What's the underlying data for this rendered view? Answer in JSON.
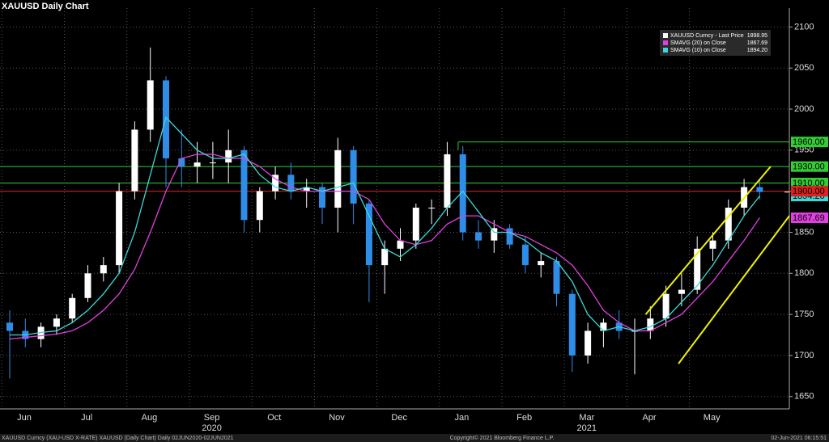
{
  "chart_data": {
    "type": "candlestick",
    "title": "XAUUSD Daily Chart",
    "categories": [
      "Jun",
      null,
      null,
      null,
      "Jul",
      null,
      null,
      null,
      "Aug",
      null,
      null,
      null,
      "Sep",
      null,
      null,
      null,
      "Oct",
      null,
      null,
      null,
      "Nov",
      null,
      null,
      null,
      "Dec",
      null,
      null,
      null,
      "Jan",
      null,
      null,
      null,
      "Feb",
      null,
      null,
      null,
      "Mar",
      null,
      null,
      null,
      "Apr",
      null,
      null,
      null,
      "May",
      null,
      null,
      null,
      null
    ],
    "x_group_labels": [
      {
        "text": "2020",
        "category": "Sep"
      },
      {
        "text": "2021",
        "category": "Mar"
      }
    ],
    "open": [
      1740,
      1730,
      1720,
      1735,
      1745,
      1770,
      1800,
      1810,
      1900,
      1975,
      2035,
      1940,
      1930,
      1935,
      1935,
      1950,
      1865,
      1900,
      1920,
      1900,
      1905,
      1880,
      1950,
      1885,
      1810,
      1830,
      1840,
      1880,
      1880,
      1945,
      1850,
      1840,
      1855,
      1835,
      1810,
      1815,
      1775,
      1700,
      1730,
      1740,
      1730,
      1730,
      1745,
      1775,
      1780,
      1830,
      1840,
      1880,
      1905
    ],
    "high": [
      1755,
      1745,
      1740,
      1750,
      1775,
      1810,
      1820,
      1910,
      1985,
      2075,
      2040,
      1975,
      1960,
      1960,
      1975,
      1955,
      1905,
      1930,
      1935,
      1915,
      1910,
      1965,
      1955,
      1890,
      1840,
      1855,
      1885,
      1890,
      1960,
      1955,
      1865,
      1865,
      1860,
      1845,
      1825,
      1820,
      1780,
      1740,
      1745,
      1755,
      1745,
      1760,
      1785,
      1800,
      1845,
      1850,
      1890,
      1915,
      1915
    ],
    "low": [
      1672,
      1710,
      1710,
      1725,
      1740,
      1765,
      1790,
      1800,
      1890,
      1960,
      1905,
      1905,
      1910,
      1915,
      1910,
      1850,
      1850,
      1890,
      1890,
      1880,
      1860,
      1850,
      1860,
      1765,
      1775,
      1815,
      1830,
      1860,
      1870,
      1840,
      1830,
      1825,
      1830,
      1800,
      1795,
      1760,
      1680,
      1690,
      1710,
      1720,
      1677,
      1720,
      1735,
      1760,
      1775,
      1815,
      1830,
      1870,
      1890
    ],
    "close": [
      1730,
      1720,
      1735,
      1745,
      1770,
      1800,
      1810,
      1900,
      1975,
      2035,
      1940,
      1930,
      1935,
      1935,
      1950,
      1865,
      1900,
      1920,
      1900,
      1905,
      1880,
      1950,
      1885,
      1810,
      1830,
      1840,
      1880,
      1880,
      1945,
      1850,
      1840,
      1855,
      1835,
      1810,
      1815,
      1775,
      1700,
      1730,
      1740,
      1730,
      1730,
      1745,
      1775,
      1780,
      1830,
      1840,
      1880,
      1905,
      1899
    ],
    "up_color": "#ffffff",
    "down_color": "#2f8de8",
    "price_name": "XAUUSD Curncy - Last Price",
    "price_last": {
      "value": 1898.95,
      "label": "1898.95"
    },
    "series": [
      {
        "name": "SMAVG (20)  on Close",
        "color": "#e040e0",
        "last": {
          "value": 1867.69,
          "label": "1867.69"
        },
        "values": [
          1720,
          1722,
          1724,
          1726,
          1730,
          1740,
          1755,
          1775,
          1805,
          1850,
          1900,
          1940,
          1945,
          1945,
          1940,
          1940,
          1930,
          1915,
          1905,
          1900,
          1900,
          1900,
          1900,
          1890,
          1860,
          1840,
          1835,
          1840,
          1860,
          1870,
          1870,
          1860,
          1850,
          1845,
          1835,
          1825,
          1810,
          1785,
          1755,
          1740,
          1730,
          1730,
          1740,
          1750,
          1770,
          1790,
          1815,
          1840,
          1867.69
        ]
      },
      {
        "name": "SMAVG (10)  on Close",
        "color": "#3fd6d6",
        "last": {
          "value": 1894.2,
          "label": "1894.20"
        },
        "values": [
          1725,
          1725,
          1728,
          1730,
          1740,
          1755,
          1775,
          1800,
          1850,
          1920,
          1990,
          1970,
          1950,
          1940,
          1940,
          1945,
          1920,
          1905,
          1900,
          1905,
          1900,
          1905,
          1910,
          1870,
          1830,
          1820,
          1835,
          1855,
          1880,
          1900,
          1875,
          1850,
          1850,
          1840,
          1825,
          1815,
          1790,
          1750,
          1730,
          1735,
          1730,
          1735,
          1745,
          1765,
          1785,
          1810,
          1840,
          1870,
          1894.2
        ]
      }
    ],
    "levels": [
      {
        "value": 1960,
        "label": "1960.00",
        "color": "#33cc33",
        "x_from": 28.7
      },
      {
        "value": 1930,
        "label": "1930.00",
        "color": "#33cc33",
        "x_from": 0
      },
      {
        "value": 1910,
        "label": "1910.00",
        "color": "#33cc33",
        "x_from": 0
      },
      {
        "value": 1900,
        "label": "1900.00",
        "color": "#e02020",
        "x_from": 0
      }
    ],
    "channels": [
      {
        "x": [
          40.7,
          48.7
        ],
        "y": [
          1750,
          1930
        ],
        "color": "#f0f000"
      },
      {
        "x": [
          42.8,
          49.9
        ],
        "y": [
          1690,
          1870
        ],
        "color": "#f0f000"
      }
    ],
    "ylim": [
      1635,
      2123
    ],
    "yticks": [
      1650,
      1700,
      1750,
      1800,
      1850,
      1900,
      1950,
      2000,
      2050,
      2100
    ],
    "grid": true
  },
  "footer": {
    "left": "XAUUSD Curncy (XAU-USD X-RATE) XAUUSD (Daily Chart)  Daily 02JUN2020-02JUN2021",
    "center": "Copyright© 2021 Bloomberg Finance L.P.",
    "right": "02-Jun-2021 06:15:51"
  }
}
